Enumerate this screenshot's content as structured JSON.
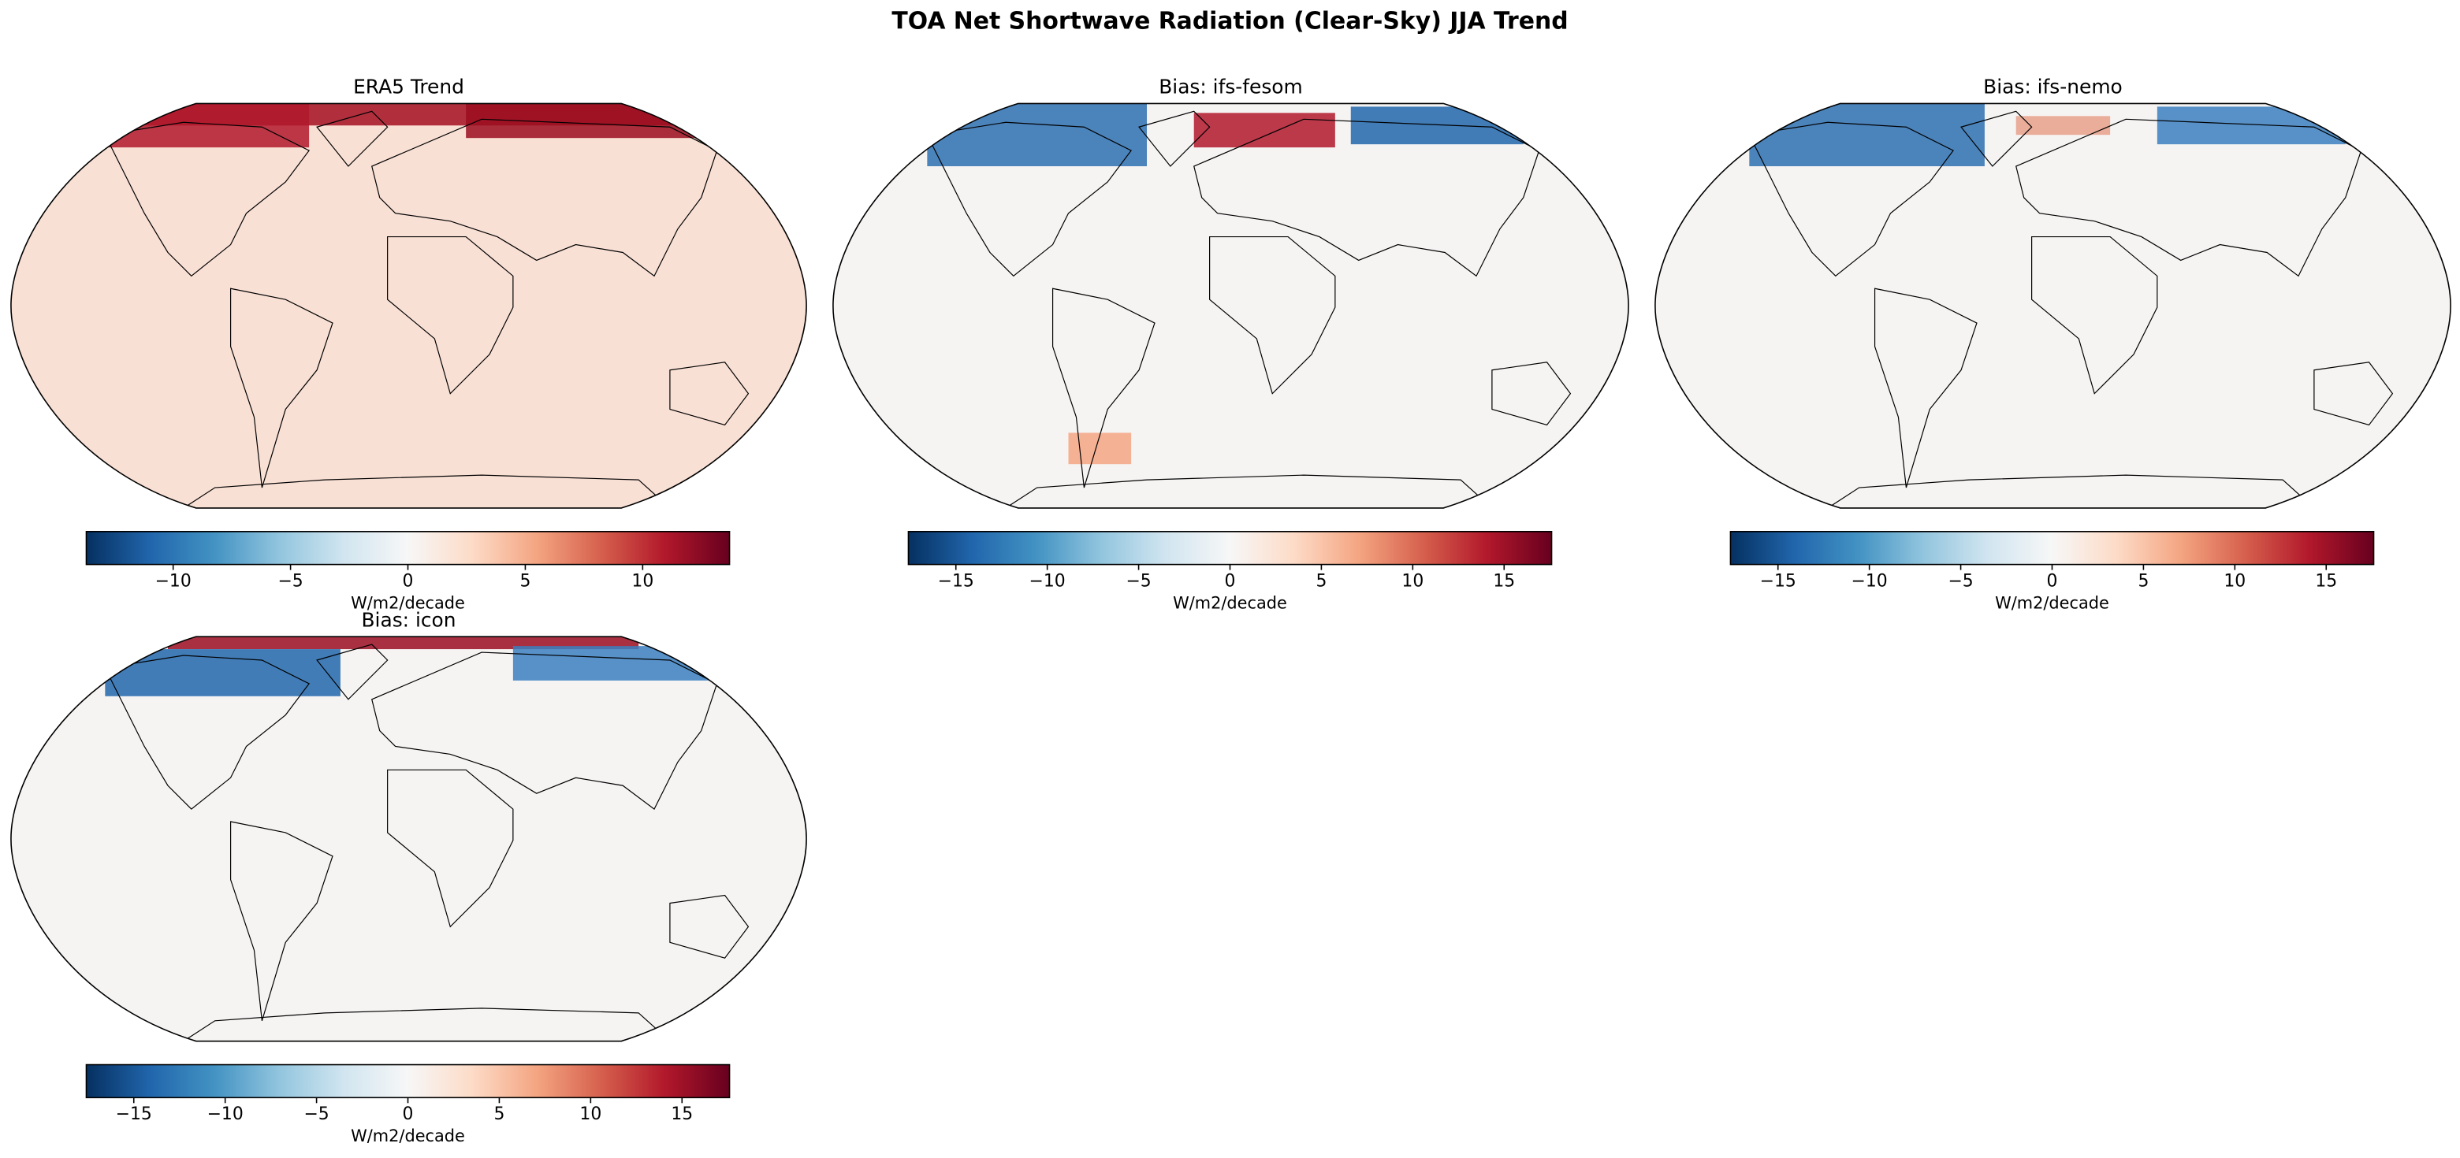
{
  "title": "TOA Net Shortwave Radiation (Clear-Sky) JJA Trend",
  "panels": [
    {
      "title": "ERA5 Trend",
      "colorbar": {
        "label": "W/m2/decade",
        "range": [
          -13.7,
          13.7
        ],
        "ticks": [
          {
            "value": -10,
            "label": "−10"
          },
          {
            "value": -5,
            "label": "−5"
          },
          0,
          5,
          10
        ]
      }
    },
    {
      "title": "Bias: ifs-fesom",
      "colorbar": {
        "label": "W/m2/decade",
        "range": [
          -17.6,
          17.6
        ],
        "ticks": [
          {
            "value": -15,
            "label": "−15"
          },
          {
            "value": -10,
            "label": "−10"
          },
          {
            "value": -5,
            "label": "−5"
          },
          0,
          5,
          10,
          15
        ]
      }
    },
    {
      "title": "Bias: ifs-nemo",
      "colorbar": {
        "label": "W/m2/decade",
        "range": [
          -17.6,
          17.6
        ],
        "ticks": [
          {
            "value": -15,
            "label": "−15"
          },
          {
            "value": -10,
            "label": "−10"
          },
          {
            "value": -5,
            "label": "−5"
          },
          0,
          5,
          10,
          15
        ]
      }
    },
    {
      "title": "Bias: icon",
      "colorbar": {
        "label": "W/m2/decade",
        "range": [
          -17.6,
          17.6
        ],
        "ticks": [
          {
            "value": -15,
            "label": "−15"
          },
          {
            "value": -10,
            "label": "−10"
          },
          {
            "value": -5,
            "label": "−5"
          },
          0,
          5,
          10,
          15
        ]
      }
    }
  ]
}
